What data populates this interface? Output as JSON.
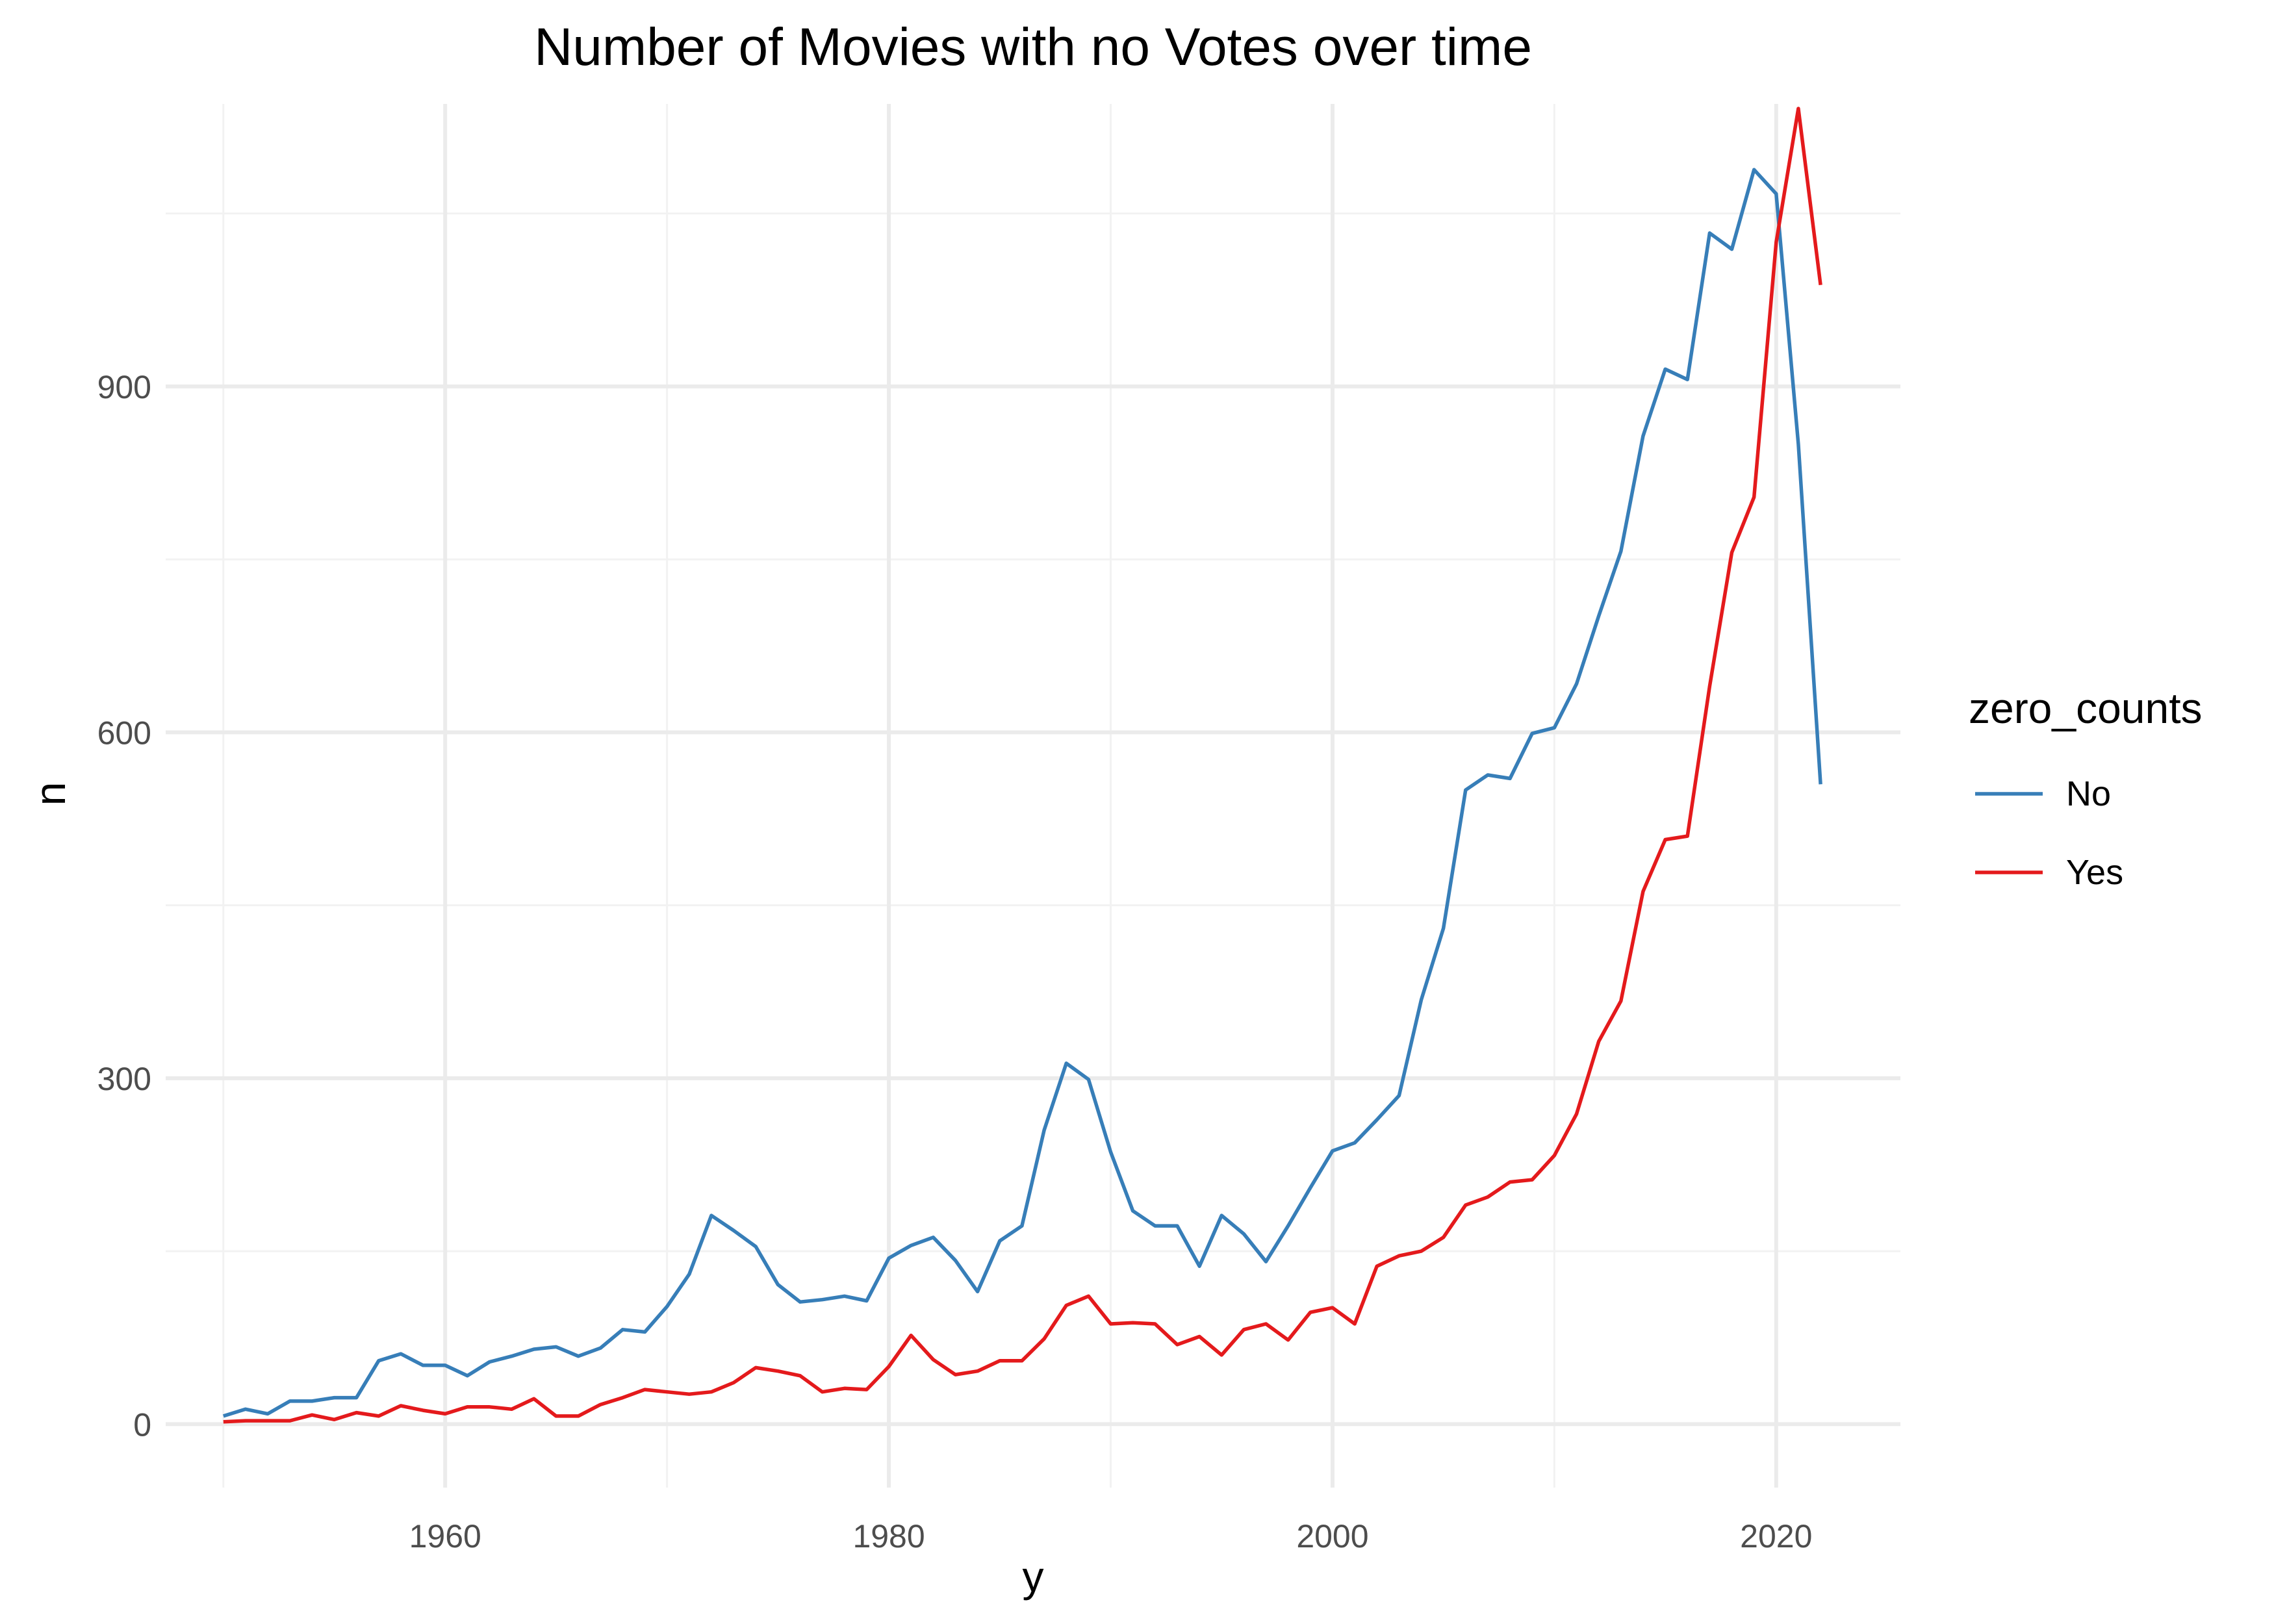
{
  "chart_data": {
    "type": "line",
    "title": "Number of Movies with no Votes over time",
    "xlabel": "y",
    "ylabel": "n",
    "xlim": [
      1947.4,
      2025.6
    ],
    "ylim": [
      -55,
      1145
    ],
    "x_ticks": [
      1960,
      1980,
      2000,
      2020
    ],
    "y_ticks": [
      0,
      300,
      600,
      900
    ],
    "grid": true,
    "legend": {
      "title": "zero_counts",
      "position": "right"
    },
    "x": [
      1950,
      1951,
      1952,
      1953,
      1954,
      1955,
      1956,
      1957,
      1958,
      1959,
      1960,
      1961,
      1962,
      1963,
      1964,
      1965,
      1966,
      1967,
      1968,
      1969,
      1970,
      1971,
      1972,
      1973,
      1974,
      1975,
      1976,
      1977,
      1978,
      1979,
      1980,
      1981,
      1982,
      1983,
      1984,
      1985,
      1986,
      1987,
      1988,
      1989,
      1990,
      1991,
      1992,
      1993,
      1994,
      1995,
      1996,
      1997,
      1998,
      1999,
      2000,
      2001,
      2002,
      2003,
      2004,
      2005,
      2006,
      2007,
      2008,
      2009,
      2010,
      2011,
      2012,
      2013,
      2014,
      2015,
      2016,
      2017,
      2018,
      2019,
      2020,
      2021,
      2022
    ],
    "series": [
      {
        "name": "No",
        "color": "#377eb8",
        "values": [
          7,
          13,
          9,
          20,
          20,
          23,
          23,
          55,
          61,
          51,
          51,
          42,
          54,
          59,
          65,
          67,
          59,
          66,
          82,
          80,
          102,
          130,
          181,
          168,
          154,
          121,
          106,
          108,
          111,
          107,
          144,
          155,
          162,
          142,
          115,
          159,
          172,
          255,
          313,
          299,
          236,
          185,
          172,
          172,
          137,
          181,
          165,
          141,
          172,
          205,
          237,
          244,
          264,
          285,
          368,
          430,
          550,
          563,
          560,
          599,
          604,
          642,
          701,
          757,
          857,
          915,
          906,
          1033,
          1019,
          1088,
          1067,
          850,
          555
        ]
      },
      {
        "name": "Yes",
        "color": "#e41a1c",
        "values": [
          2,
          3,
          3,
          3,
          8,
          4,
          10,
          7,
          16,
          12,
          9,
          15,
          15,
          13,
          22,
          7,
          7,
          17,
          23,
          30,
          28,
          26,
          28,
          36,
          49,
          46,
          42,
          28,
          31,
          30,
          50,
          77,
          56,
          43,
          46,
          55,
          55,
          74,
          103,
          111,
          87,
          88,
          87,
          69,
          76,
          60,
          82,
          87,
          73,
          97,
          101,
          87,
          137,
          146,
          150,
          162,
          190,
          197,
          210,
          212,
          233,
          269,
          332,
          367,
          462,
          507,
          510,
          640,
          756,
          804,
          1025,
          1141,
          988
        ]
      }
    ]
  }
}
